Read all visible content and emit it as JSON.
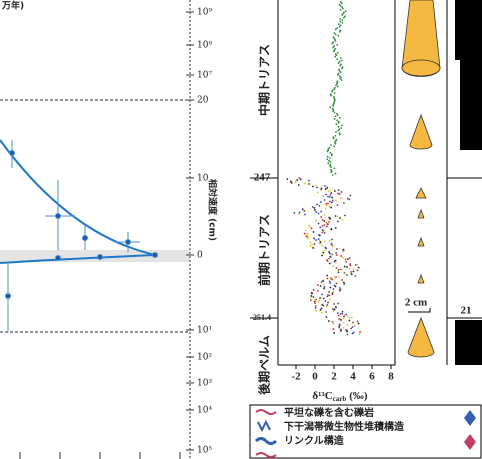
{
  "left_panel": {
    "header": "万年)",
    "axis_labels": [
      "10⁹",
      "10⁸",
      "10⁷",
      "20",
      "10",
      "0",
      "10¹",
      "10²",
      "10³",
      "10⁴",
      "10⁵"
    ],
    "axis_title": "相対速度 (cm)"
  },
  "middle_panel": {
    "age_labels": [
      "247",
      "251.4"
    ],
    "stage_labels": [
      "中期トリアス",
      "前期トリアス",
      "後期ペルム"
    ],
    "x_ticks": [
      "-2",
      "0",
      "2",
      "4",
      "6",
      "8"
    ],
    "x_axis_title": {
      "symbol": "δ¹³C",
      "subscript": "carb",
      "unit": "(‰)"
    }
  },
  "right_panel": {
    "scale_label": "2 cm",
    "number": "21"
  },
  "legend": {
    "items": [
      "平坦な礫を含む礫岩",
      "下干潟帯微生物性堆積構造",
      "リンクル構造"
    ]
  }
}
